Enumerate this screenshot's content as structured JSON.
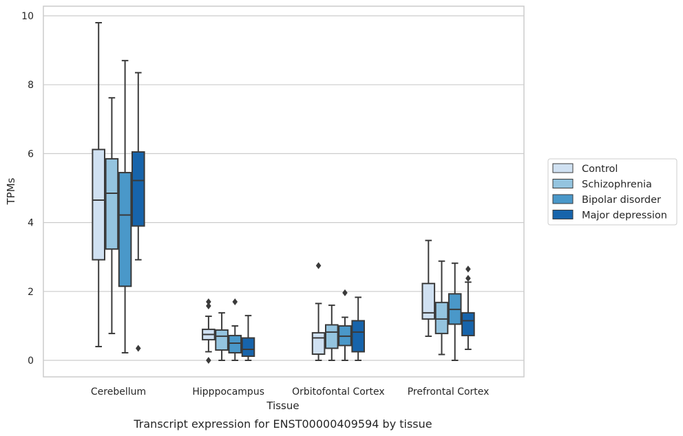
{
  "caption": "Transcript expression for ENST00000409594 by tissue",
  "chart_data": {
    "type": "box",
    "xlabel": "Tissue",
    "ylabel": "TPMs",
    "ylim": [
      -0.45,
      10.3
    ],
    "yticks": [
      0,
      2,
      4,
      6,
      8,
      10
    ],
    "grid": "horizontal",
    "legend_position": "right",
    "categories": [
      "Cerebellum",
      "Hipppocampus",
      "Orbitofontal Cortex",
      "Prefrontal Cortex"
    ],
    "series": [
      {
        "name": "Control",
        "color": "#d0e1f2",
        "boxes": [
          {
            "whislo": 0.4,
            "q1": 2.92,
            "med": 4.65,
            "q3": 6.12,
            "whishi": 9.8,
            "fliers": []
          },
          {
            "whislo": 0.25,
            "q1": 0.6,
            "med": 0.75,
            "q3": 0.9,
            "whishi": 1.28,
            "fliers": [
              0.0,
              1.58,
              1.7
            ]
          },
          {
            "whislo": 0.0,
            "q1": 0.18,
            "med": 0.65,
            "q3": 0.8,
            "whishi": 1.65,
            "fliers": [
              2.75
            ]
          },
          {
            "whislo": 0.7,
            "q1": 1.2,
            "med": 1.38,
            "q3": 2.23,
            "whishi": 3.48,
            "fliers": []
          }
        ]
      },
      {
        "name": "Schizophrenia",
        "color": "#94c4df",
        "boxes": [
          {
            "whislo": 0.78,
            "q1": 3.23,
            "med": 4.85,
            "q3": 5.85,
            "whishi": 7.62,
            "fliers": []
          },
          {
            "whislo": 0.0,
            "q1": 0.3,
            "med": 0.7,
            "q3": 0.88,
            "whishi": 1.38,
            "fliers": []
          },
          {
            "whislo": 0.0,
            "q1": 0.35,
            "med": 0.82,
            "q3": 1.03,
            "whishi": 1.6,
            "fliers": []
          },
          {
            "whislo": 0.17,
            "q1": 0.78,
            "med": 1.2,
            "q3": 1.68,
            "whishi": 2.88,
            "fliers": []
          }
        ]
      },
      {
        "name": "Bipolar disorder",
        "color": "#4a98c9",
        "boxes": [
          {
            "whislo": 0.22,
            "q1": 2.15,
            "med": 4.22,
            "q3": 5.45,
            "whishi": 8.7,
            "fliers": []
          },
          {
            "whislo": 0.0,
            "q1": 0.22,
            "med": 0.5,
            "q3": 0.72,
            "whishi": 1.0,
            "fliers": [
              1.7
            ]
          },
          {
            "whislo": 0.0,
            "q1": 0.43,
            "med": 0.7,
            "q3": 1.0,
            "whishi": 1.25,
            "fliers": [
              1.96
            ]
          },
          {
            "whislo": 0.0,
            "q1": 1.05,
            "med": 1.48,
            "q3": 1.93,
            "whishi": 2.82,
            "fliers": []
          }
        ]
      },
      {
        "name": "Major depression",
        "color": "#1764ab",
        "boxes": [
          {
            "whislo": 2.92,
            "q1": 3.9,
            "med": 5.22,
            "q3": 6.05,
            "whishi": 8.35,
            "fliers": [
              0.35
            ]
          },
          {
            "whislo": 0.0,
            "q1": 0.12,
            "med": 0.32,
            "q3": 0.65,
            "whishi": 1.3,
            "fliers": []
          },
          {
            "whislo": 0.0,
            "q1": 0.25,
            "med": 0.82,
            "q3": 1.15,
            "whishi": 1.83,
            "fliers": []
          },
          {
            "whislo": 0.32,
            "q1": 0.72,
            "med": 1.15,
            "q3": 1.38,
            "whishi": 2.27,
            "fliers": [
              2.38,
              2.65
            ]
          }
        ]
      }
    ]
  }
}
